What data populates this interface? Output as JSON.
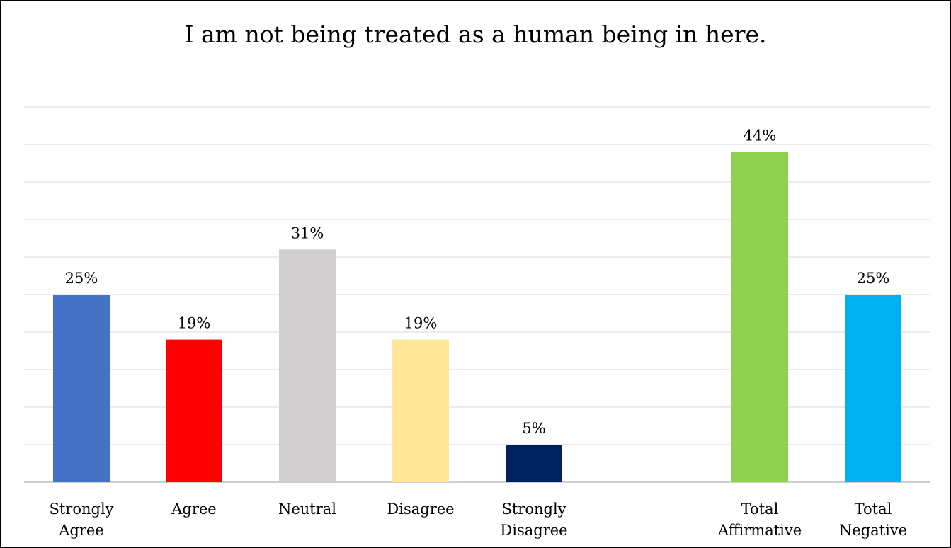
{
  "chart_data": {
    "type": "bar",
    "title": "I am not being treated as a human being in here.",
    "xlabel": "",
    "ylabel": "",
    "ylim": [
      0,
      50
    ],
    "grid": true,
    "value_suffix": "%",
    "categories": [
      {
        "label_lines": [
          "Strongly",
          "Agree"
        ],
        "value": 25,
        "color": "#4472C4"
      },
      {
        "label_lines": [
          "Agree"
        ],
        "value": 19,
        "color": "#FF0000"
      },
      {
        "label_lines": [
          "Neutral"
        ],
        "value": 31,
        "color": "#D0CECE"
      },
      {
        "label_lines": [
          "Disagree"
        ],
        "value": 19,
        "color": "#FFE699"
      },
      {
        "label_lines": [
          "Strongly",
          "Disagree"
        ],
        "value": 5,
        "color": "#002060"
      },
      {
        "label_lines": [
          "Total",
          "Affirmative"
        ],
        "value": 44,
        "color": "#92D050"
      },
      {
        "label_lines": [
          "Total",
          "Negative"
        ],
        "value": 25,
        "color": "#00B0F0"
      }
    ]
  }
}
